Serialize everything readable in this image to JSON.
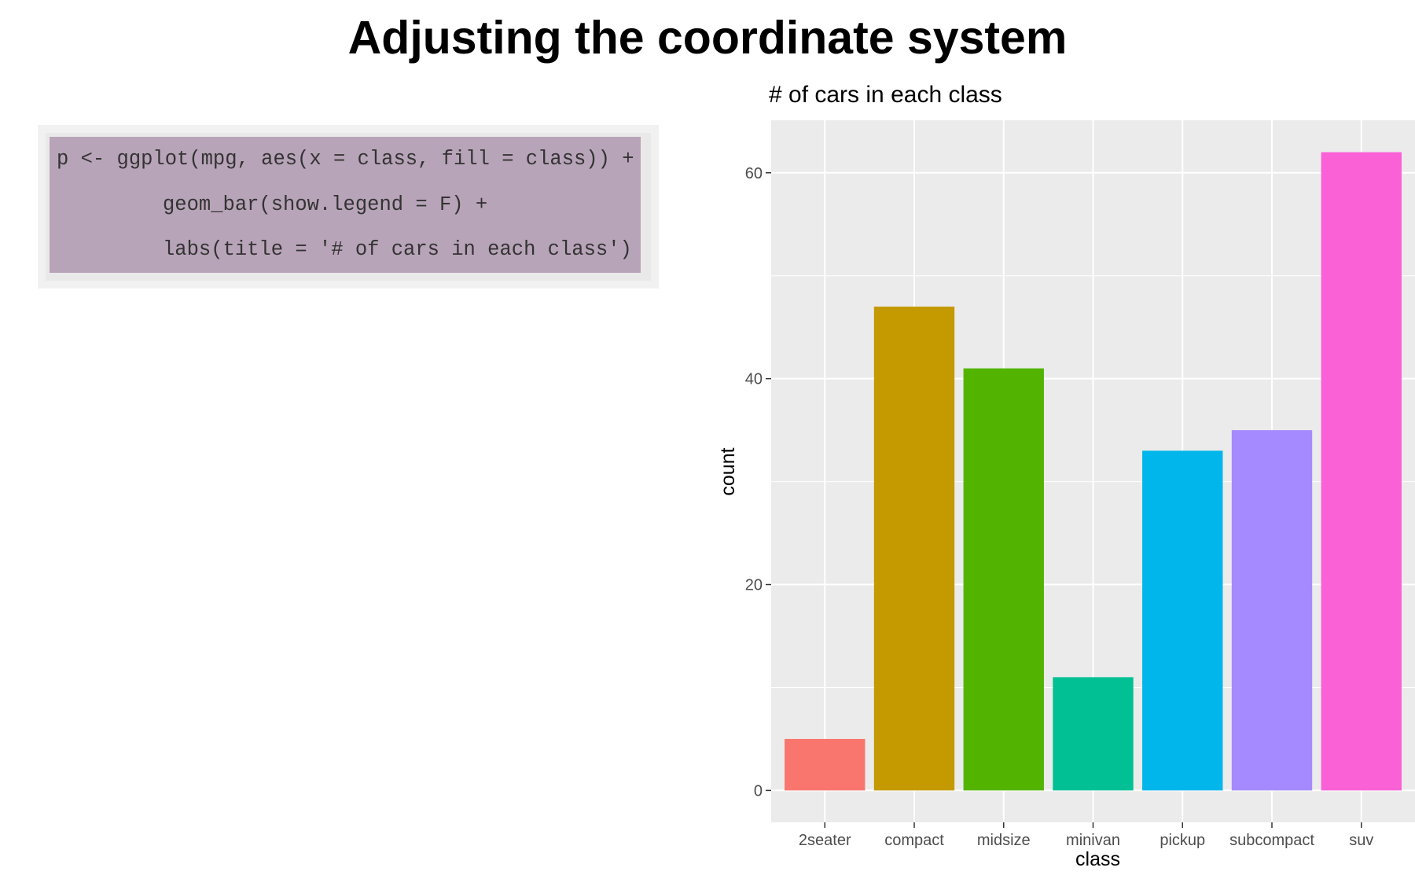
{
  "slide": {
    "title": "Adjusting the coordinate system"
  },
  "code": {
    "lines": [
      "p <- ggplot(mpg, aes(x = class, fill = class)) +",
      "geom_bar(show.legend = F) +",
      "labs(title = '# of cars in each class')"
    ]
  },
  "chart_data": {
    "type": "bar",
    "title": "# of cars in each class",
    "xlabel": "class",
    "ylabel": "count",
    "categories": [
      "2seater",
      "compact",
      "midsize",
      "minivan",
      "pickup",
      "subcompact",
      "suv"
    ],
    "values": [
      5,
      47,
      41,
      11,
      33,
      35,
      62
    ],
    "colors": [
      "#F8766D",
      "#C49A00",
      "#53B400",
      "#00C094",
      "#00B6EB",
      "#A58AFF",
      "#FB61D7"
    ],
    "yticks": [
      0,
      20,
      40,
      60
    ],
    "ylim": [
      -3.1,
      65.1
    ],
    "grid": true,
    "legend": "none",
    "panel_background": "#EBEBEB",
    "gridline_color": "#FFFFFF"
  }
}
